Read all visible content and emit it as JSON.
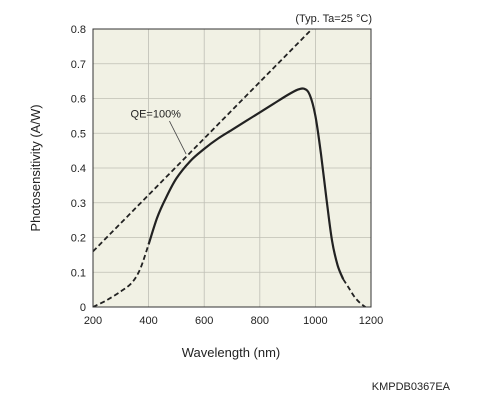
{
  "chart_data": {
    "type": "line",
    "note": "(Typ. Ta=25 °C)",
    "xlabel": "Wavelength (nm)",
    "ylabel": "Photosensitivity (A/W)",
    "figure_code": "KMPDB0367EA",
    "xlim": [
      200,
      1200
    ],
    "ylim": [
      0,
      0.8
    ],
    "xticks": [
      200,
      400,
      600,
      800,
      1000,
      1200
    ],
    "yticks": [
      0,
      0.1,
      0.2,
      0.3,
      0.4,
      0.5,
      0.6,
      0.7,
      0.8
    ],
    "ytick_labels": [
      "0",
      "0.1",
      "0.2",
      "0.3",
      "0.4",
      "0.5",
      "0.6",
      "0.7",
      "0.8"
    ],
    "grid": true,
    "annotation": "QE=100%",
    "colors": {
      "plot_background": "#f1f1e4",
      "line": "#222222",
      "grid": "#bfbfb5"
    },
    "series": [
      {
        "name": "QE=100%",
        "style": "dashed",
        "x": [
          200,
          1000
        ],
        "y": [
          0.16,
          0.81
        ]
      },
      {
        "style": "dashed",
        "x": [
          200,
          250,
          300,
          340,
          370,
          400
        ],
        "y": [
          0.0,
          0.02,
          0.045,
          0.07,
          0.11,
          0.18
        ]
      },
      {
        "style": "solid",
        "x": [
          400,
          430,
          460,
          500,
          550,
          600,
          650,
          700,
          750,
          800,
          850,
          900,
          935,
          960,
          980,
          1000,
          1020,
          1040,
          1060,
          1080,
          1100
        ],
        "y": [
          0.18,
          0.255,
          0.31,
          0.37,
          0.42,
          0.455,
          0.485,
          0.51,
          0.535,
          0.56,
          0.585,
          0.61,
          0.625,
          0.628,
          0.61,
          0.55,
          0.44,
          0.31,
          0.19,
          0.12,
          0.08
        ]
      },
      {
        "style": "dashed",
        "x": [
          1100,
          1120,
          1140,
          1160,
          1180
        ],
        "y": [
          0.08,
          0.055,
          0.03,
          0.012,
          0.0
        ]
      }
    ]
  }
}
